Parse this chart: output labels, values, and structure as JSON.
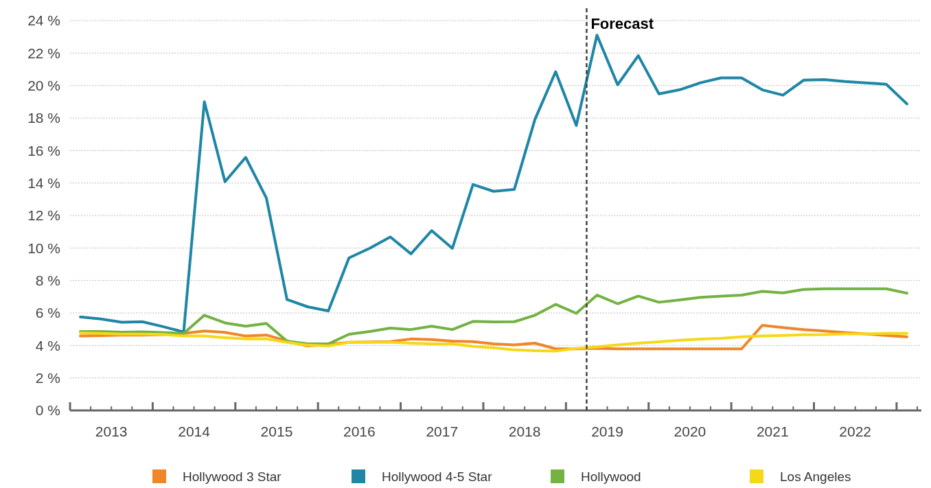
{
  "chart_data": {
    "type": "line",
    "x": [
      2013.125,
      2013.375,
      2013.625,
      2013.875,
      2014.125,
      2014.375,
      2014.625,
      2014.875,
      2015.125,
      2015.375,
      2015.625,
      2015.875,
      2016.125,
      2016.375,
      2016.625,
      2016.875,
      2017.125,
      2017.375,
      2017.625,
      2017.875,
      2018.125,
      2018.375,
      2018.625,
      2018.875,
      2019.125,
      2019.375,
      2019.625,
      2019.875,
      2020.125,
      2020.375,
      2020.625,
      2020.875,
      2021.125,
      2021.375,
      2021.625,
      2021.875,
      2022.125,
      2022.375,
      2022.625,
      2022.875,
      2023.125
    ],
    "series": [
      {
        "name": "Hollywood 3 Star",
        "color": "#f0862a",
        "values": [
          4.58,
          4.61,
          4.64,
          4.64,
          4.67,
          4.74,
          4.89,
          4.81,
          4.58,
          4.64,
          4.27,
          3.97,
          4.07,
          4.19,
          4.22,
          4.24,
          4.4,
          4.36,
          4.27,
          4.24,
          4.1,
          4.04,
          4.14,
          3.79,
          3.79,
          3.82,
          3.79,
          3.79,
          3.79,
          3.79,
          3.79,
          3.79,
          3.79,
          5.24,
          5.1,
          4.98,
          4.89,
          4.8,
          4.71,
          4.62,
          4.53
        ]
      },
      {
        "name": "Hollywood 4-5 Star",
        "color": "#1f86a6",
        "values": [
          5.76,
          5.63,
          5.43,
          5.46,
          5.16,
          4.83,
          19.0,
          14.08,
          15.58,
          13.08,
          6.83,
          6.38,
          6.13,
          9.39,
          9.98,
          10.68,
          9.64,
          11.07,
          9.98,
          13.91,
          13.49,
          13.61,
          17.92,
          20.85,
          17.54,
          23.1,
          20.05,
          21.84,
          19.49,
          19.74,
          20.17,
          20.47,
          20.47,
          19.74,
          19.41,
          20.33,
          20.37,
          20.25,
          20.17,
          20.08,
          18.87
        ]
      },
      {
        "name": "Hollywood",
        "color": "#73b243",
        "values": [
          4.86,
          4.86,
          4.82,
          4.84,
          4.8,
          4.74,
          5.86,
          5.39,
          5.19,
          5.36,
          4.27,
          4.1,
          4.1,
          4.69,
          4.86,
          5.07,
          4.98,
          5.19,
          4.98,
          5.48,
          5.45,
          5.46,
          5.86,
          6.53,
          5.98,
          7.1,
          6.57,
          7.04,
          6.66,
          6.8,
          6.96,
          7.04,
          7.1,
          7.33,
          7.24,
          7.45,
          7.49,
          7.49,
          7.49,
          7.49,
          7.22
        ]
      },
      {
        "name": "Los Angeles",
        "color": "#f5d817",
        "values": [
          4.77,
          4.74,
          4.7,
          4.7,
          4.68,
          4.58,
          4.58,
          4.48,
          4.4,
          4.4,
          4.19,
          4.02,
          3.97,
          4.19,
          4.19,
          4.19,
          4.14,
          4.1,
          4.1,
          3.94,
          3.86,
          3.73,
          3.68,
          3.65,
          3.82,
          3.91,
          4.04,
          4.14,
          4.23,
          4.32,
          4.39,
          4.44,
          4.53,
          4.58,
          4.62,
          4.66,
          4.67,
          4.71,
          4.71,
          4.74,
          4.74
        ]
      }
    ],
    "xlim": [
      2013,
      2023.3
    ],
    "xticks": [
      {
        "value": 2013,
        "label": null
      },
      {
        "value": 2013.25,
        "label": null
      },
      {
        "value": 2013.5,
        "label": "2013"
      },
      {
        "value": 2013.75,
        "label": null
      },
      {
        "value": 2014,
        "label": null
      },
      {
        "value": 2014.25,
        "label": null
      },
      {
        "value": 2014.5,
        "label": "2014"
      },
      {
        "value": 2014.75,
        "label": null
      },
      {
        "value": 2015,
        "label": null
      },
      {
        "value": 2015.25,
        "label": null
      },
      {
        "value": 2015.5,
        "label": "2015"
      },
      {
        "value": 2015.75,
        "label": null
      },
      {
        "value": 2016,
        "label": null
      },
      {
        "value": 2016.25,
        "label": null
      },
      {
        "value": 2016.5,
        "label": "2016"
      },
      {
        "value": 2016.75,
        "label": null
      },
      {
        "value": 2017,
        "label": null
      },
      {
        "value": 2017.25,
        "label": null
      },
      {
        "value": 2017.5,
        "label": "2017"
      },
      {
        "value": 2017.75,
        "label": null
      },
      {
        "value": 2018,
        "label": null
      },
      {
        "value": 2018.25,
        "label": null
      },
      {
        "value": 2018.5,
        "label": "2018"
      },
      {
        "value": 2018.75,
        "label": null
      },
      {
        "value": 2019,
        "label": null
      },
      {
        "value": 2019.25,
        "label": null
      },
      {
        "value": 2019.5,
        "label": "2019"
      },
      {
        "value": 2019.75,
        "label": null
      },
      {
        "value": 2020,
        "label": null
      },
      {
        "value": 2020.25,
        "label": null
      },
      {
        "value": 2020.5,
        "label": "2020"
      },
      {
        "value": 2020.75,
        "label": null
      },
      {
        "value": 2021,
        "label": null
      },
      {
        "value": 2021.25,
        "label": null
      },
      {
        "value": 2021.5,
        "label": "2021"
      },
      {
        "value": 2021.75,
        "label": null
      },
      {
        "value": 2022,
        "label": null
      },
      {
        "value": 2022.25,
        "label": null
      },
      {
        "value": 2022.5,
        "label": "2022"
      },
      {
        "value": 2022.75,
        "label": null
      },
      {
        "value": 2023,
        "label": null
      },
      {
        "value": 2023.25,
        "label": null
      }
    ],
    "ylim": [
      0,
      24
    ],
    "yticks": [
      {
        "value": 0,
        "label": "0 %"
      },
      {
        "value": 2,
        "label": "2 %"
      },
      {
        "value": 4,
        "label": "4 %"
      },
      {
        "value": 6,
        "label": "6 %"
      },
      {
        "value": 8,
        "label": "8 %"
      },
      {
        "value": 10,
        "label": "10 %"
      },
      {
        "value": 12,
        "label": "12 %"
      },
      {
        "value": 14,
        "label": "14 %"
      },
      {
        "value": 16,
        "label": "16 %"
      },
      {
        "value": 18,
        "label": "18 %"
      },
      {
        "value": 20,
        "label": "20 %"
      },
      {
        "value": 22,
        "label": "22 %"
      },
      {
        "value": 24,
        "label": "24 %"
      }
    ],
    "grid": "y",
    "legend": "bottom",
    "marker": "none",
    "line_style": "solid",
    "ref_lines": [
      {
        "axis": "x",
        "value": 2019.25,
        "label": "Forecast",
        "color": "#444444",
        "line_style": "dashed"
      }
    ]
  }
}
